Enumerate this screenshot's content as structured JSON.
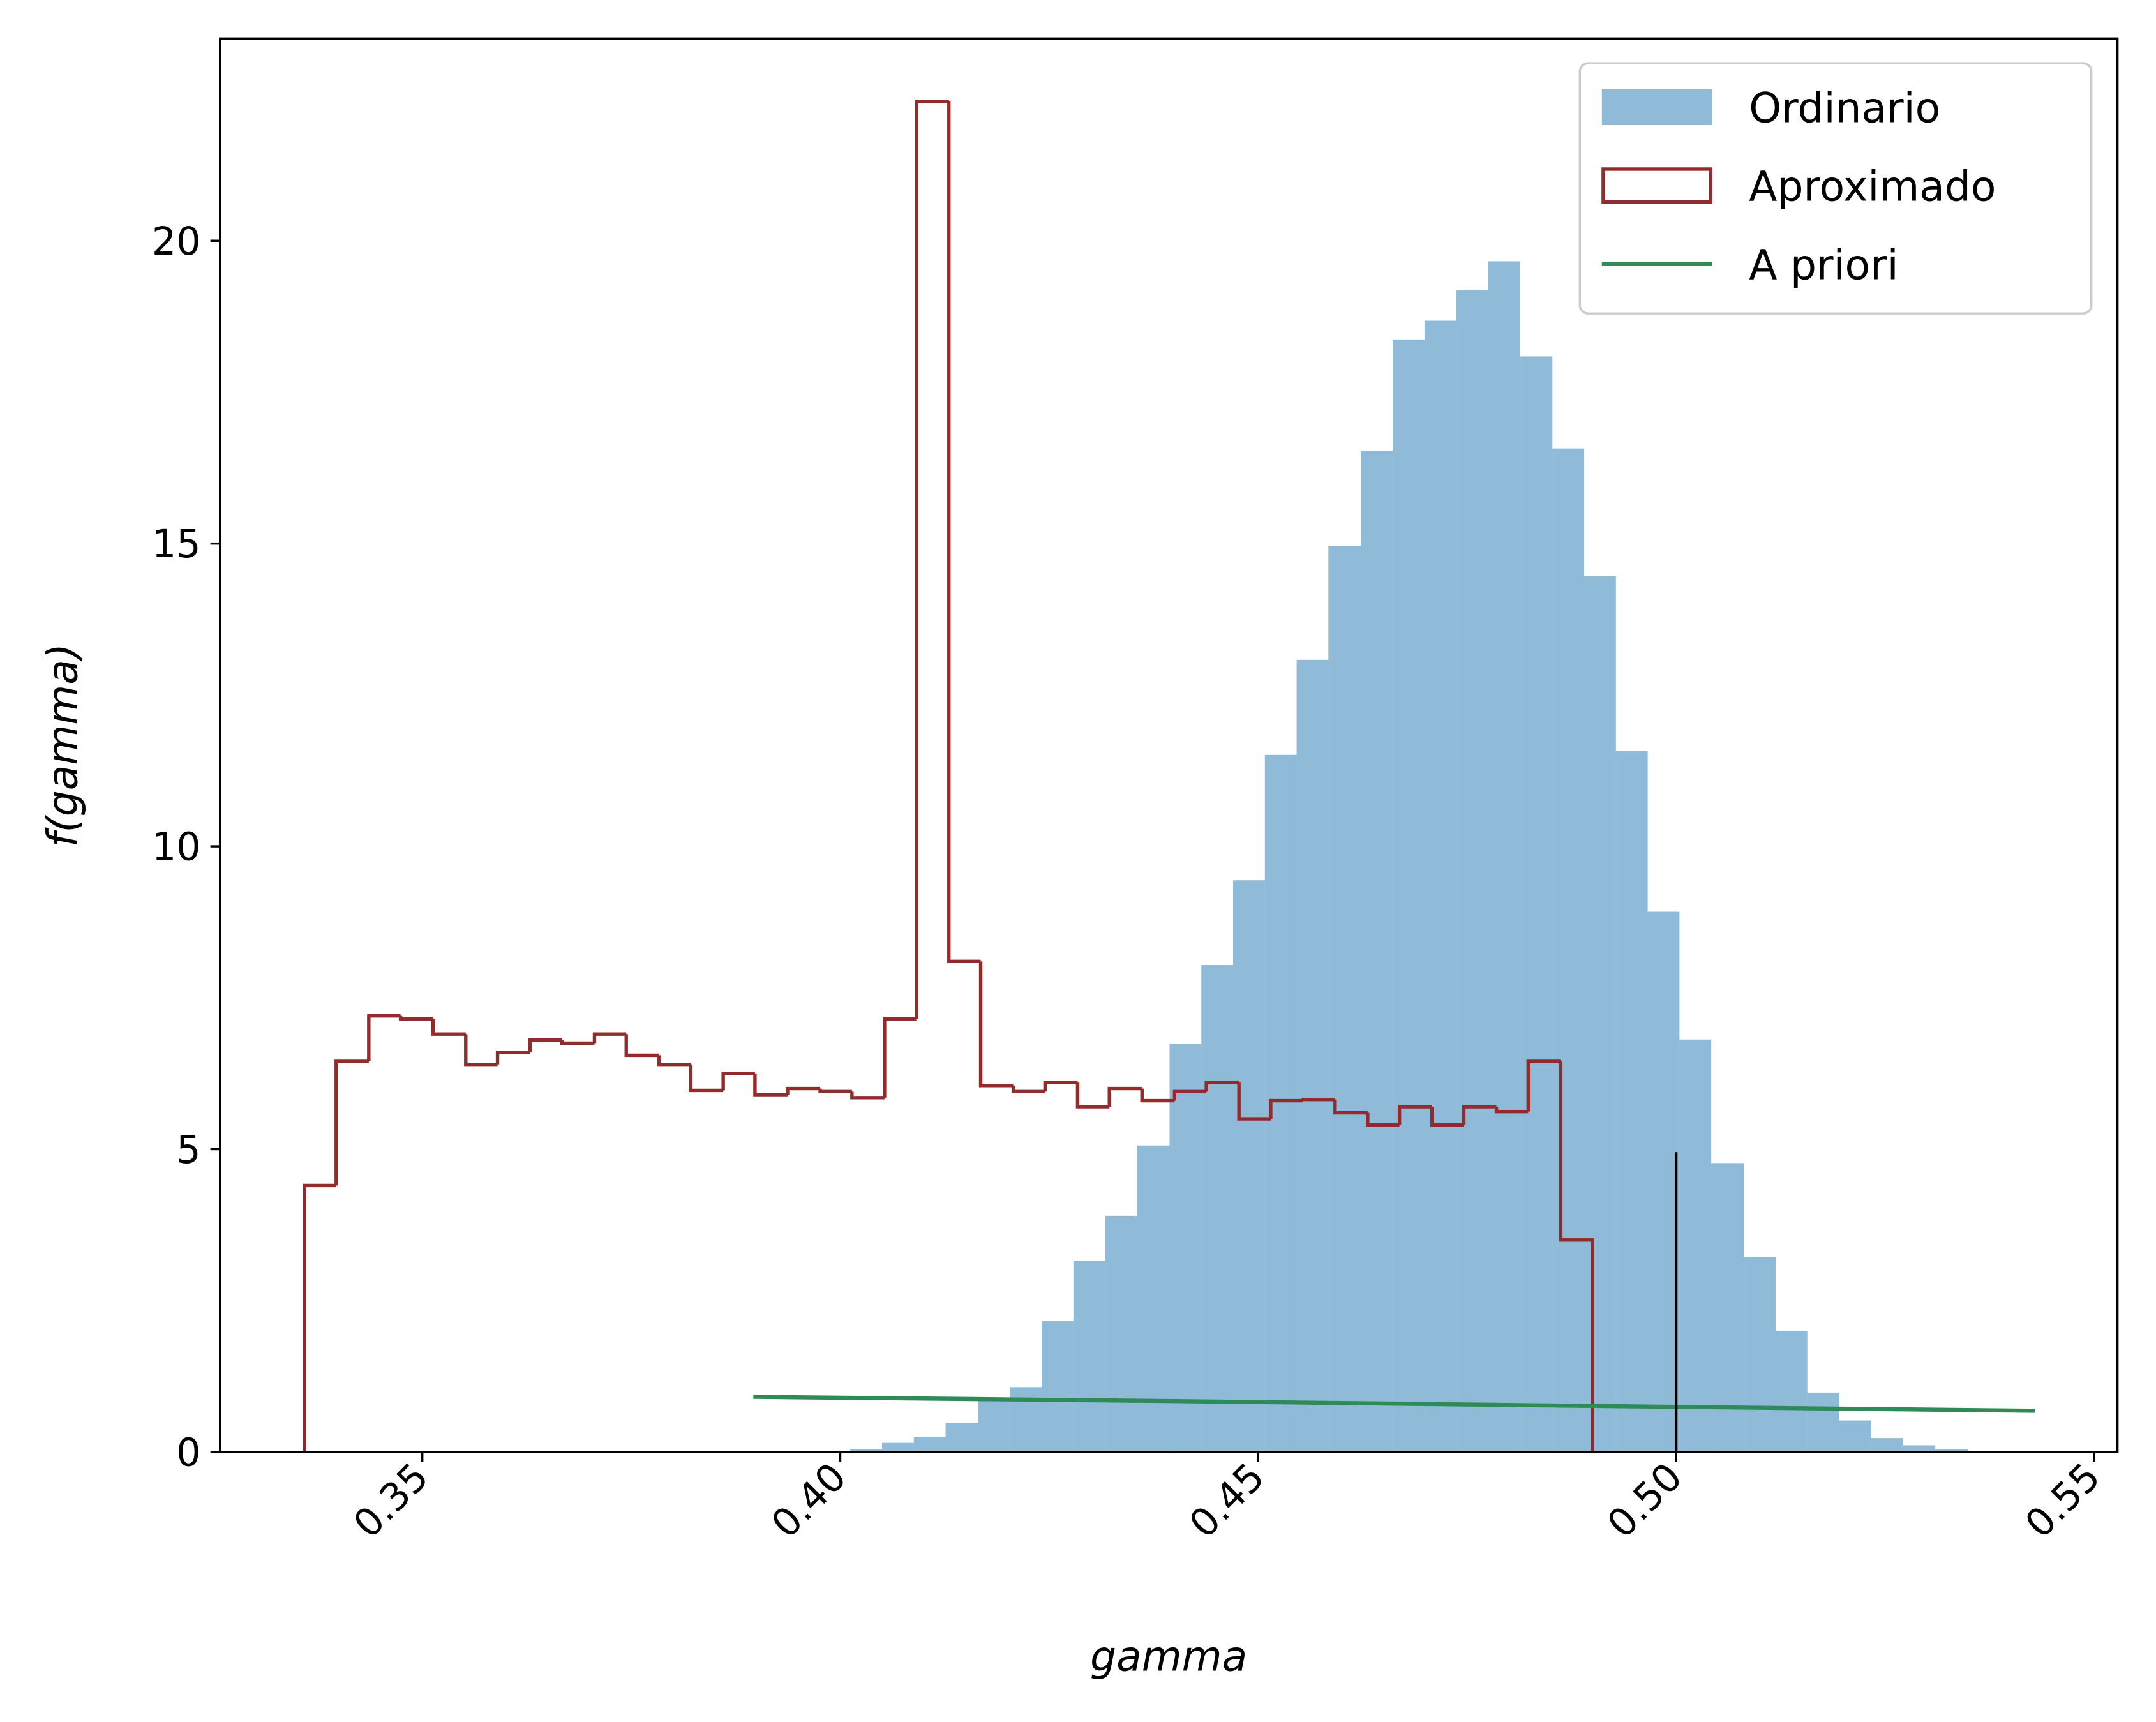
{
  "chart_data": {
    "type": "histogram",
    "xlabel": "gamma",
    "ylabel": "f(gamma)",
    "xlim": [
      0.3258,
      0.5528
    ],
    "ylim": [
      0,
      23.34
    ],
    "xticks": [
      0.35,
      {
        "value": 0.4,
        "label": "0.40"
      },
      0.45,
      {
        "value": 0.5,
        "label": "0.50"
      },
      0.55
    ],
    "yticks": [
      0,
      5,
      10,
      15,
      20
    ],
    "legend": "upper right",
    "series": [
      {
        "name": "Ordinario",
        "type": "bar",
        "color": "#1f77b4",
        "alpha": 0.5,
        "bins": [
          0.4012,
          0.405,
          0.4088,
          0.4126,
          0.4165,
          0.4203,
          0.4241,
          0.4279,
          0.4317,
          0.4355,
          0.4394,
          0.4432,
          0.447,
          0.4508,
          0.4546,
          0.4584,
          0.4623,
          0.4661,
          0.4699,
          0.4737,
          0.4775,
          0.4813,
          0.4852,
          0.489,
          0.4928,
          0.4966,
          0.5004,
          0.5042,
          0.5081,
          0.5119,
          0.5157,
          0.5195,
          0.5233,
          0.5271,
          0.531,
          0.5349
        ],
        "values": [
          0.05,
          0.15,
          0.25,
          0.48,
          0.89,
          1.07,
          2.16,
          3.16,
          3.9,
          5.06,
          6.74,
          8.04,
          9.44,
          11.51,
          13.08,
          14.96,
          16.53,
          18.37,
          18.68,
          19.18,
          19.66,
          18.09,
          16.57,
          14.46,
          11.58,
          8.92,
          6.81,
          4.77,
          3.22,
          2.0,
          0.98,
          0.52,
          0.23,
          0.11,
          0.05
        ]
      },
      {
        "name": "Aproximado",
        "type": "step",
        "color": "#922b2b",
        "bins": [
          0.3359,
          0.3397,
          0.3436,
          0.3474,
          0.3513,
          0.3552,
          0.359,
          0.3629,
          0.3667,
          0.3706,
          0.3744,
          0.3783,
          0.3821,
          0.386,
          0.3898,
          0.3937,
          0.3976,
          0.4014,
          0.4053,
          0.4091,
          0.413,
          0.4168,
          0.4207,
          0.4245,
          0.4284,
          0.4322,
          0.4361,
          0.44,
          0.4438,
          0.4477,
          0.4515,
          0.4554,
          0.4592,
          0.4631,
          0.4669,
          0.4708,
          0.4746,
          0.4785,
          0.4823,
          0.4862,
          0.49
        ],
        "values": [
          4.4,
          6.45,
          7.2,
          7.15,
          6.9,
          6.4,
          6.6,
          6.8,
          6.75,
          6.9,
          6.55,
          6.4,
          5.97,
          6.25,
          5.9,
          6.0,
          5.95,
          5.85,
          7.15,
          22.3,
          8.1,
          6.05,
          5.95,
          6.1,
          5.7,
          6.0,
          5.8,
          5.95,
          6.1,
          5.5,
          5.8,
          5.82,
          5.6,
          5.4,
          5.7,
          5.4,
          5.7,
          5.62,
          6.45,
          3.5
        ]
      },
      {
        "name": "A priori",
        "type": "line",
        "color": "#2e8b57",
        "x": [
          0.3896,
          0.44,
          0.49,
          0.5429
        ],
        "values": [
          0.91,
          0.84,
          0.76,
          0.68
        ]
      }
    ],
    "reference_line": {
      "x": 0.5,
      "y": [
        0,
        4.95
      ],
      "color": "#000000"
    }
  }
}
